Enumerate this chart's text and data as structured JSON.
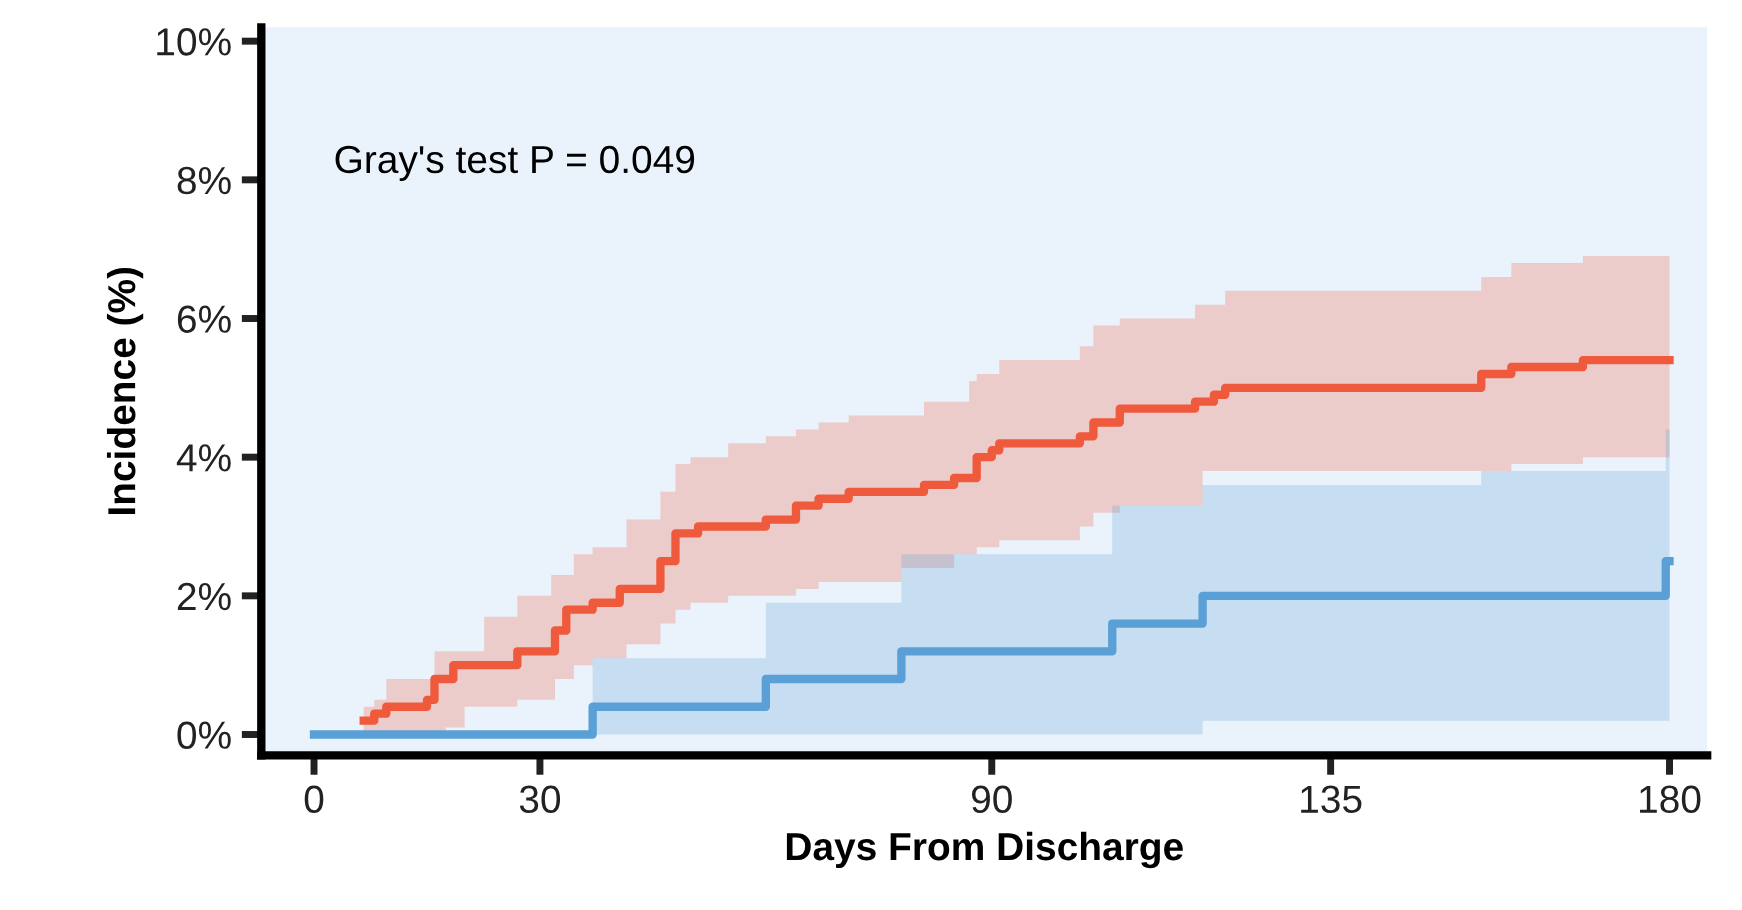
{
  "chart_data": {
    "type": "step",
    "xlabel": "Days From Discharge",
    "ylabel": "Incidence (%)",
    "annotations": [
      "Gray's test P = 0.049"
    ],
    "xlim": [
      -7,
      185
    ],
    "xticks": [
      0,
      30,
      90,
      135,
      180
    ],
    "ylim": [
      -0.3,
      10.2
    ],
    "yticks": [
      {
        "value": 0,
        "label": "0%"
      },
      {
        "value": 2,
        "label": "2%"
      },
      {
        "value": 4,
        "label": "4%"
      },
      {
        "value": 6,
        "label": "6%"
      },
      {
        "value": 8,
        "label": "8%"
      },
      {
        "value": 10,
        "label": "10%"
      }
    ],
    "grid": false,
    "legend": false,
    "line_style": "solid",
    "marker": "none",
    "series": [
      {
        "color": "#f05a3c",
        "x": [
          6.6,
          8,
          9.6,
          15,
          16,
          17.5,
          18.5,
          20,
          21,
          22.6,
          27,
          31.5,
          32,
          33.5,
          34.5,
          37,
          40.6,
          41.5,
          46,
          48,
          50,
          51,
          55,
          60,
          64,
          67,
          71,
          78,
          81,
          85,
          87,
          88,
          90,
          91,
          101.7,
          103.5,
          107,
          117,
          118,
          119.5,
          121,
          155,
          159,
          168.5,
          180
        ],
        "values": [
          0.2,
          0.3,
          0.4,
          0.5,
          0.8,
          0.8,
          1.0,
          1.0,
          1.0,
          1.0,
          1.2,
          1.2,
          1.5,
          1.8,
          1.8,
          1.9,
          2.1,
          2.1,
          2.5,
          2.9,
          2.9,
          3.0,
          3.0,
          3.1,
          3.3,
          3.4,
          3.5,
          3.5,
          3.6,
          3.7,
          3.7,
          4.0,
          4.1,
          4.2,
          4.3,
          4.5,
          4.7,
          4.8,
          4.8,
          4.9,
          5.0,
          5.2,
          5.3,
          5.4,
          5.4
        ],
        "lower": [
          0,
          0,
          0,
          0,
          0,
          0.1,
          0.1,
          0.4,
          0.4,
          0.4,
          0.5,
          0.5,
          0.8,
          0.8,
          1.0,
          1.1,
          1.1,
          1.3,
          1.6,
          1.8,
          1.9,
          1.9,
          2.0,
          2.0,
          2.1,
          2.2,
          2.2,
          2.4,
          2.4,
          2.6,
          2.6,
          2.7,
          2.7,
          2.8,
          3.0,
          3.2,
          3.3,
          3.3,
          3.8,
          3.8,
          3.8,
          3.8,
          3.9,
          4.0,
          4.4
        ],
        "upper": [
          0.4,
          0.5,
          0.8,
          0.8,
          1.2,
          1.2,
          1.2,
          1.2,
          1.2,
          1.7,
          2.0,
          2.3,
          2.3,
          2.3,
          2.6,
          2.7,
          2.7,
          3.1,
          3.5,
          3.9,
          4.0,
          4.0,
          4.2,
          4.3,
          4.4,
          4.5,
          4.6,
          4.6,
          4.8,
          4.8,
          5.1,
          5.2,
          5.2,
          5.4,
          5.6,
          5.9,
          6.0,
          6.2,
          6.2,
          6.2,
          6.4,
          6.6,
          6.8,
          6.9,
          6.9
        ]
      },
      {
        "color": "#5aa0d6",
        "x": [
          0,
          37,
          60,
          78,
          106,
          118,
          155,
          179.5,
          180
        ],
        "values": [
          0,
          0.4,
          0.8,
          1.2,
          1.6,
          2.0,
          2.0,
          2.5,
          2.5
        ],
        "lower": [
          0,
          0,
          0,
          0,
          0,
          0.2,
          0.2,
          0.2,
          0.2
        ],
        "upper": [
          0,
          1.1,
          1.9,
          2.6,
          3.3,
          3.6,
          3.8,
          4.4,
          4.4
        ]
      }
    ]
  }
}
